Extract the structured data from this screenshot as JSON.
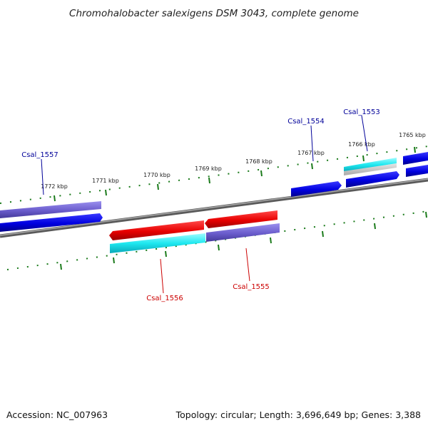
{
  "title": "Chromohalobacter salexigens DSM 3043, complete genome",
  "footer": {
    "accession": "Accession: NC_007963",
    "summary": "Topology: circular; Length: 3,696,649 bp; Genes: 3,388"
  },
  "kbp_labels": [
    "1772 kbp",
    "1771 kbp",
    "1770 kbp",
    "1769 kbp",
    "1768 kbp",
    "1767 kbp",
    "1766 kbp",
    "1765 kbp"
  ],
  "gene_labels": {
    "csal_1557": "Csal_1557",
    "csal_1556": "Csal_1556",
    "csal_1555": "Csal_1555",
    "csal_1554": "Csal_1554",
    "csal_1553": "Csal_1553"
  },
  "colors": {
    "backbone": "#808080",
    "tick": "#1a7a1a",
    "blue": "#0a0ad8",
    "red": "#e00000",
    "cyan": "#1ee0e8",
    "purple": "#6a5ccc",
    "gray_feature": "#c4c4c4",
    "label_blue": "#000099",
    "label_red": "#cc0000"
  }
}
